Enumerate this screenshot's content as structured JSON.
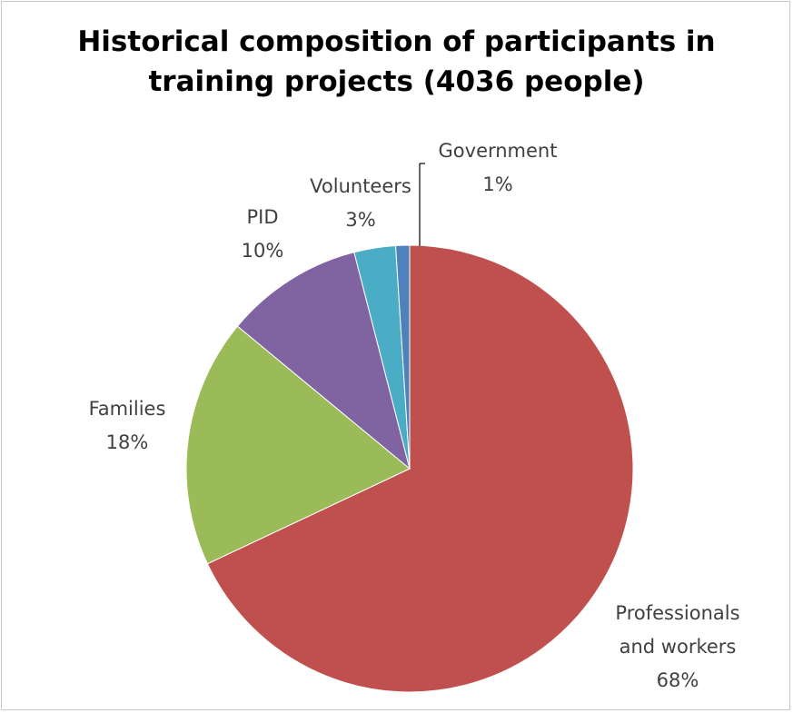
{
  "chart_data": {
    "type": "pie",
    "title_lines": [
      "Historical composition of participants in",
      "training projects (4036 people)"
    ],
    "slices": [
      {
        "label_lines": [
          "Professionals",
          "and workers"
        ],
        "percent_label": "68%",
        "value": 68,
        "color": "#c0504d"
      },
      {
        "label_lines": [
          "Families"
        ],
        "percent_label": "18%",
        "value": 18,
        "color": "#9bbb59"
      },
      {
        "label_lines": [
          "PID"
        ],
        "percent_label": "10%",
        "value": 10,
        "color": "#8064a2"
      },
      {
        "label_lines": [
          "Volunteers"
        ],
        "percent_label": "3%",
        "value": 3,
        "color": "#4bacc6"
      },
      {
        "label_lines": [
          "Government"
        ],
        "percent_label": "1%",
        "value": 1,
        "color": "#4f81bd"
      }
    ],
    "start": "12 o'clock",
    "direction": "clockwise",
    "legend": "none",
    "data_labels": "category name and percentage, outside end"
  }
}
